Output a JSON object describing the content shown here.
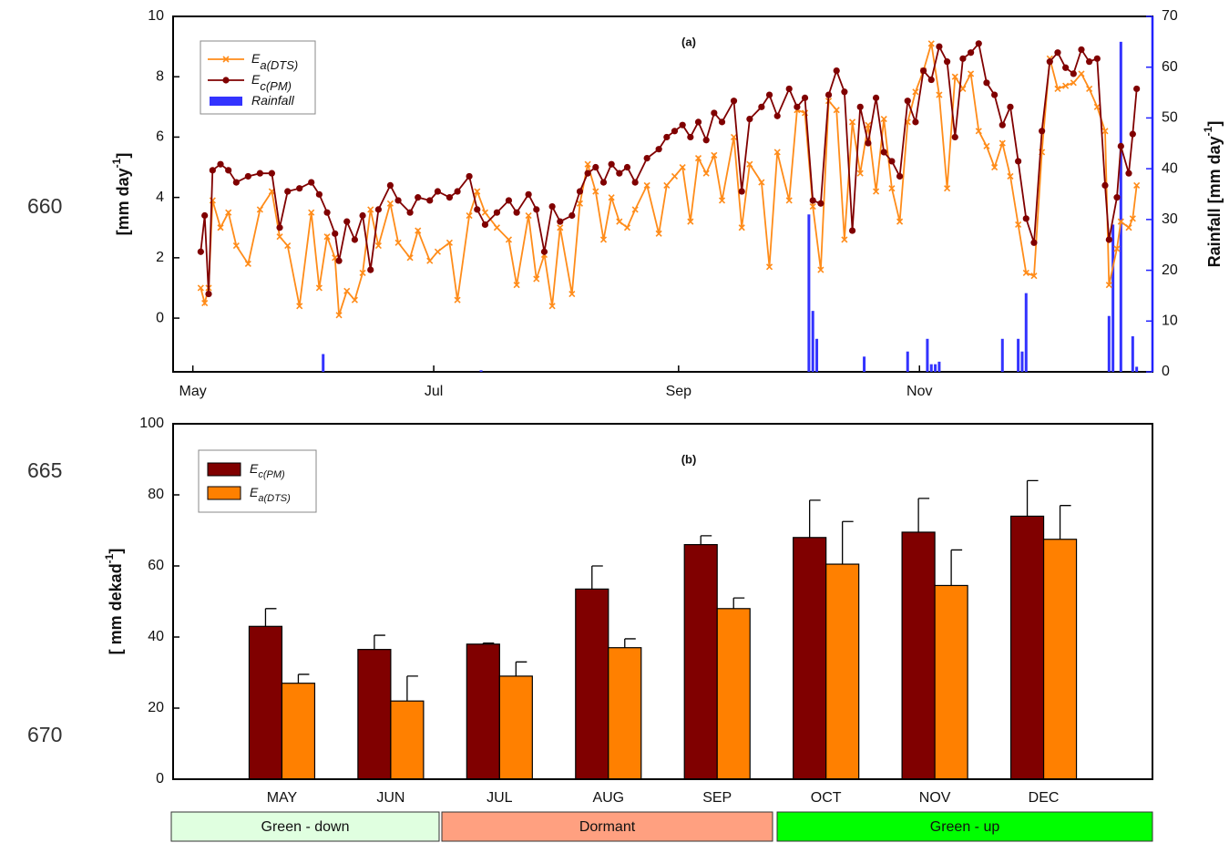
{
  "line_numbers": [
    "660",
    "665",
    "670"
  ],
  "chart_data": [
    {
      "type": "line",
      "title": "(a)",
      "ylabel": "[mm day",
      "ylabel_sup": "-1",
      "ylabel_end": "]",
      "y2label": "Rainfall [mm day",
      "y2label_sup": "-1",
      "y2label_end": "]",
      "xlim": [
        -5,
        243
      ],
      "xticks": [
        {
          "value": 0,
          "label": "May"
        },
        {
          "value": 61,
          "label": "Jul"
        },
        {
          "value": 123,
          "label": "Sep"
        },
        {
          "value": 184,
          "label": "Nov"
        }
      ],
      "ylim": [
        -1.78,
        10
      ],
      "yticks": [
        0,
        2,
        4,
        6,
        8,
        10
      ],
      "y2lim": [
        0,
        70
      ],
      "y2ticks": [
        0,
        10,
        20,
        30,
        40,
        50,
        60,
        70
      ],
      "legend": "upper left",
      "x": [
        2,
        3,
        4,
        5,
        7,
        9,
        11,
        14,
        17,
        20,
        22,
        24,
        27,
        30,
        32,
        34,
        36,
        37,
        39,
        41,
        43,
        45,
        47,
        50,
        52,
        55,
        57,
        60,
        62,
        65,
        67,
        70,
        72,
        74,
        77,
        80,
        82,
        85,
        87,
        89,
        91,
        93,
        96,
        98,
        100,
        102,
        104,
        106,
        108,
        110,
        112,
        115,
        118,
        120,
        122,
        124,
        126,
        128,
        130,
        132,
        134,
        137,
        139,
        141,
        144,
        146,
        148,
        151,
        153,
        155,
        157,
        159,
        161,
        163,
        165,
        167,
        169,
        171,
        173,
        175,
        177,
        179,
        181,
        183,
        185,
        187,
        189,
        191,
        193,
        195,
        197,
        199,
        201,
        203,
        205,
        207,
        209,
        211,
        213,
        215,
        217,
        219,
        221,
        223,
        225,
        227,
        229,
        231,
        232,
        234,
        235,
        237,
        238,
        239
      ],
      "series": [
        {
          "name": "E",
          "subscript": "a(DTS)",
          "color": "#ff8c1a",
          "marker": "x",
          "values": [
            1.0,
            0.5,
            1.0,
            3.9,
            3.0,
            3.5,
            2.4,
            1.8,
            3.6,
            4.2,
            2.7,
            2.4,
            0.4,
            3.5,
            1.0,
            2.7,
            2.0,
            0.1,
            0.9,
            0.6,
            1.5,
            3.6,
            2.4,
            3.8,
            2.5,
            2.0,
            2.9,
            1.9,
            2.2,
            2.5,
            0.6,
            3.4,
            4.2,
            3.5,
            3.0,
            2.6,
            1.1,
            3.4,
            1.3,
            2.1,
            0.4,
            3.0,
            0.8,
            3.8,
            5.1,
            4.2,
            2.6,
            4.0,
            3.2,
            3.0,
            3.6,
            4.4,
            2.8,
            4.4,
            4.7,
            5.0,
            3.2,
            5.3,
            4.8,
            5.4,
            3.9,
            6.0,
            3.0,
            5.1,
            4.5,
            1.7,
            5.5,
            3.9,
            6.9,
            6.8,
            3.7,
            1.6,
            7.2,
            6.9,
            2.6,
            6.5,
            4.8,
            6.4,
            4.2,
            6.6,
            4.3,
            3.2,
            6.5,
            7.5,
            8.2,
            9.1,
            7.4,
            4.3,
            8.0,
            7.6,
            8.1,
            6.2,
            5.7,
            5.0,
            5.8,
            4.7,
            3.1,
            1.5,
            1.4,
            5.5,
            8.6,
            7.6,
            7.7,
            7.8,
            8.1,
            7.6,
            7.0,
            6.2,
            1.1,
            2.3,
            3.2,
            3.0,
            3.3,
            4.4
          ]
        },
        {
          "name": "E",
          "subscript": "c(PM)",
          "color": "#800000",
          "marker": "circle",
          "values": [
            2.2,
            3.4,
            0.8,
            4.9,
            5.1,
            4.9,
            4.5,
            4.7,
            4.8,
            4.8,
            3.0,
            4.2,
            4.3,
            4.5,
            4.1,
            3.5,
            2.8,
            1.9,
            3.2,
            2.6,
            3.4,
            1.6,
            3.6,
            4.4,
            3.9,
            3.5,
            4.0,
            3.9,
            4.2,
            4.0,
            4.2,
            4.7,
            3.6,
            3.1,
            3.5,
            3.9,
            3.5,
            4.1,
            3.6,
            2.2,
            3.7,
            3.2,
            3.4,
            4.2,
            4.8,
            5.0,
            4.5,
            5.1,
            4.8,
            5.0,
            4.5,
            5.3,
            5.6,
            6.0,
            6.2,
            6.4,
            6.0,
            6.5,
            5.9,
            6.8,
            6.5,
            7.2,
            4.2,
            6.6,
            7.0,
            7.4,
            6.7,
            7.6,
            7.0,
            7.3,
            3.9,
            3.8,
            7.4,
            8.2,
            7.5,
            2.9,
            7.0,
            5.8,
            7.3,
            5.5,
            5.2,
            4.7,
            7.2,
            6.5,
            8.2,
            7.9,
            9.0,
            8.5,
            6.0,
            8.6,
            8.8,
            9.1,
            7.8,
            7.4,
            6.4,
            7.0,
            5.2,
            3.3,
            2.5,
            6.2,
            8.5,
            8.8,
            8.3,
            8.1,
            8.9,
            8.5,
            8.6,
            4.4,
            2.6,
            4.0,
            5.7,
            4.8,
            6.1,
            7.6
          ]
        },
        {
          "name": "Rainfall",
          "color": "#3333ff",
          "type": "bar",
          "axis": "y2",
          "x": [
            33,
            73,
            156,
            157,
            158,
            170,
            181,
            186,
            187,
            188,
            189,
            205,
            209,
            210,
            211,
            232,
            233,
            235,
            238,
            239
          ],
          "values": [
            3.5,
            0.3,
            31,
            12,
            6.5,
            3,
            4,
            6.5,
            1.5,
            1.5,
            2,
            6.5,
            6.5,
            4,
            15.5,
            11,
            29,
            65,
            7,
            1
          ]
        }
      ]
    },
    {
      "type": "bar",
      "title": "(b)",
      "ylabel": "[ mm dekad",
      "ylabel_sup": "-1",
      "ylabel_end": "]",
      "categories": [
        "MAY",
        "JUN",
        "JUL",
        "AUG",
        "SEP",
        "OCT",
        "NOV",
        "DEC"
      ],
      "ylim": [
        0,
        100
      ],
      "yticks": [
        0,
        20,
        40,
        60,
        80,
        100
      ],
      "legend": "upper left",
      "series": [
        {
          "name": "E",
          "subscript": "c(PM)",
          "color": "#800000",
          "values": [
            43,
            36.5,
            38,
            53.5,
            66,
            68,
            69.5,
            74
          ],
          "errors": [
            5,
            4,
            0.3,
            6.5,
            2.5,
            10.5,
            9.5,
            10
          ]
        },
        {
          "name": "E",
          "subscript": "a(DTS)",
          "color": "#ff8000",
          "values": [
            27,
            22,
            29,
            37,
            48,
            60.5,
            54.5,
            67.5
          ],
          "errors": [
            2.5,
            7,
            4,
            2.5,
            3,
            12,
            10,
            9.5
          ]
        }
      ],
      "phases": [
        {
          "label": "Green - down",
          "color": "#e0ffe0"
        },
        {
          "label": "Dormant",
          "color": "#ffa080"
        },
        {
          "label": "Green - up",
          "color": "#00ff00"
        }
      ]
    }
  ]
}
